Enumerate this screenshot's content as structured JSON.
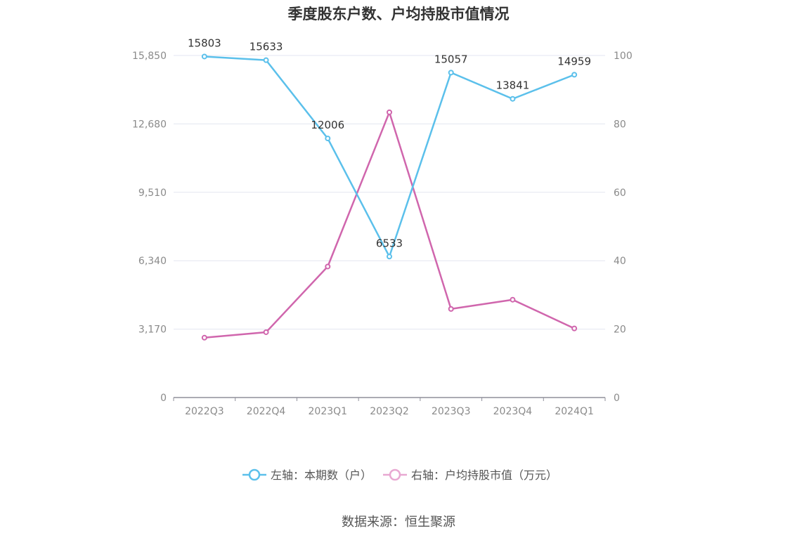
{
  "chart_data": {
    "type": "line",
    "title": "季度股东户数、户均持股市值情况",
    "categories": [
      "2022Q3",
      "2022Q4",
      "2023Q1",
      "2023Q2",
      "2023Q3",
      "2023Q4",
      "2024Q1"
    ],
    "left_axis": {
      "ticks": [
        "0",
        "3,170",
        "6,340",
        "9,510",
        "12,680",
        "15,850"
      ],
      "ylim": [
        0,
        15850
      ]
    },
    "right_axis": {
      "ticks": [
        "0",
        "20",
        "40",
        "60",
        "80",
        "100"
      ],
      "ylim": [
        0,
        100
      ]
    },
    "grid": true,
    "legend_position": "bottom",
    "series": [
      {
        "name": "左轴：本期数（户）",
        "axis": "left",
        "color": "#5bc0eb",
        "values": [
          15803,
          15633,
          12006,
          6533,
          15057,
          13841,
          14959
        ],
        "labels": [
          "15803",
          "15633",
          "12006",
          "6533",
          "15057",
          "13841",
          "14959"
        ]
      },
      {
        "name": "右轴：户均持股市值（万元）",
        "axis": "right",
        "color": "#d066ad",
        "legend_color": "#e8a8d2",
        "values": [
          17.5,
          19.1,
          38.3,
          83.4,
          25.9,
          28.6,
          20.2
        ]
      }
    ]
  },
  "source": "数据来源：恒生聚源"
}
